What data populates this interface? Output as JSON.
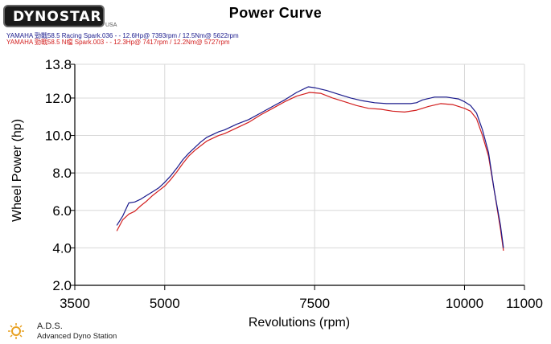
{
  "header": {
    "logo_text": "DYNOSTAR",
    "logo_sub": "USA",
    "title": "Power Curve"
  },
  "legend": [
    {
      "text": "YAMAHA 勁戰58.5 Racing Spark.036 - - 12.6Hp@ 7393rpm / 12.5Nm@ 5622rpm",
      "color": "#1a1a8c"
    },
    {
      "text": "YAMAHA 勁戰58.5 N檔 Spark.003 - - 12.3Hp@ 7417rpm / 12.2Nm@ 5727rpm",
      "color": "#d21e1e"
    }
  ],
  "footer": {
    "brand": "A.D.S.",
    "brand_sub": "Advanced Dyno Station"
  },
  "chart_data": {
    "type": "line",
    "title": "Power Curve",
    "xlabel": "Revolutions (rpm)",
    "ylabel": "Wheel Power (hp)",
    "xlim": [
      3500,
      11000
    ],
    "ylim": [
      2.0,
      13.8
    ],
    "x_ticks": [
      3500,
      5000,
      7500,
      10000,
      11000
    ],
    "x_tick_labels": [
      "3500",
      "5000",
      "7500",
      "10000",
      "11000"
    ],
    "y_ticks": [
      2.0,
      4.0,
      6.0,
      8.0,
      10.0,
      12.0,
      13.8
    ],
    "y_tick_labels": [
      "2.0",
      "4.0",
      "6.0",
      "8.0",
      "10.0",
      "12.0",
      "13.8"
    ],
    "grid": true,
    "legend_position": "top-left",
    "series": [
      {
        "name": "YAMAHA 勁戰58.5 Racing Spark.036",
        "color": "#1a1a8c",
        "points": [
          [
            4200,
            5.2
          ],
          [
            4300,
            5.7
          ],
          [
            4400,
            6.4
          ],
          [
            4500,
            6.45
          ],
          [
            4600,
            6.6
          ],
          [
            4700,
            6.8
          ],
          [
            4800,
            7.0
          ],
          [
            4900,
            7.2
          ],
          [
            5000,
            7.5
          ],
          [
            5100,
            7.85
          ],
          [
            5200,
            8.25
          ],
          [
            5300,
            8.7
          ],
          [
            5400,
            9.05
          ],
          [
            5500,
            9.35
          ],
          [
            5600,
            9.65
          ],
          [
            5700,
            9.9
          ],
          [
            5800,
            10.05
          ],
          [
            5900,
            10.2
          ],
          [
            6000,
            10.3
          ],
          [
            6200,
            10.6
          ],
          [
            6400,
            10.85
          ],
          [
            6600,
            11.2
          ],
          [
            6800,
            11.55
          ],
          [
            7000,
            11.9
          ],
          [
            7200,
            12.3
          ],
          [
            7393,
            12.6
          ],
          [
            7500,
            12.55
          ],
          [
            7700,
            12.4
          ],
          [
            7900,
            12.2
          ],
          [
            8100,
            12.0
          ],
          [
            8300,
            11.85
          ],
          [
            8500,
            11.75
          ],
          [
            8700,
            11.7
          ],
          [
            8900,
            11.7
          ],
          [
            9100,
            11.7
          ],
          [
            9200,
            11.75
          ],
          [
            9300,
            11.9
          ],
          [
            9500,
            12.05
          ],
          [
            9700,
            12.05
          ],
          [
            9900,
            11.95
          ],
          [
            10000,
            11.8
          ],
          [
            10100,
            11.6
          ],
          [
            10200,
            11.2
          ],
          [
            10300,
            10.3
          ],
          [
            10400,
            9.1
          ],
          [
            10500,
            7.0
          ],
          [
            10600,
            5.2
          ],
          [
            10650,
            4.0
          ]
        ]
      },
      {
        "name": "YAMAHA 勁戰58.5 N檔 Spark.003",
        "color": "#d21e1e",
        "points": [
          [
            4200,
            4.9
          ],
          [
            4300,
            5.5
          ],
          [
            4400,
            5.8
          ],
          [
            4500,
            5.95
          ],
          [
            4600,
            6.25
          ],
          [
            4700,
            6.5
          ],
          [
            4800,
            6.8
          ],
          [
            4900,
            7.05
          ],
          [
            5000,
            7.3
          ],
          [
            5100,
            7.65
          ],
          [
            5200,
            8.05
          ],
          [
            5300,
            8.5
          ],
          [
            5400,
            8.9
          ],
          [
            5500,
            9.2
          ],
          [
            5600,
            9.45
          ],
          [
            5700,
            9.7
          ],
          [
            5800,
            9.85
          ],
          [
            5900,
            10.0
          ],
          [
            6000,
            10.1
          ],
          [
            6200,
            10.4
          ],
          [
            6400,
            10.7
          ],
          [
            6600,
            11.1
          ],
          [
            6800,
            11.45
          ],
          [
            7000,
            11.8
          ],
          [
            7200,
            12.1
          ],
          [
            7417,
            12.3
          ],
          [
            7600,
            12.25
          ],
          [
            7800,
            12.0
          ],
          [
            8000,
            11.8
          ],
          [
            8200,
            11.6
          ],
          [
            8400,
            11.45
          ],
          [
            8600,
            11.4
          ],
          [
            8800,
            11.3
          ],
          [
            9000,
            11.25
          ],
          [
            9200,
            11.35
          ],
          [
            9400,
            11.55
          ],
          [
            9600,
            11.7
          ],
          [
            9800,
            11.65
          ],
          [
            10000,
            11.45
          ],
          [
            10100,
            11.3
          ],
          [
            10200,
            10.9
          ],
          [
            10300,
            10.0
          ],
          [
            10400,
            8.9
          ],
          [
            10500,
            7.0
          ],
          [
            10600,
            5.0
          ],
          [
            10650,
            3.85
          ]
        ]
      }
    ]
  }
}
